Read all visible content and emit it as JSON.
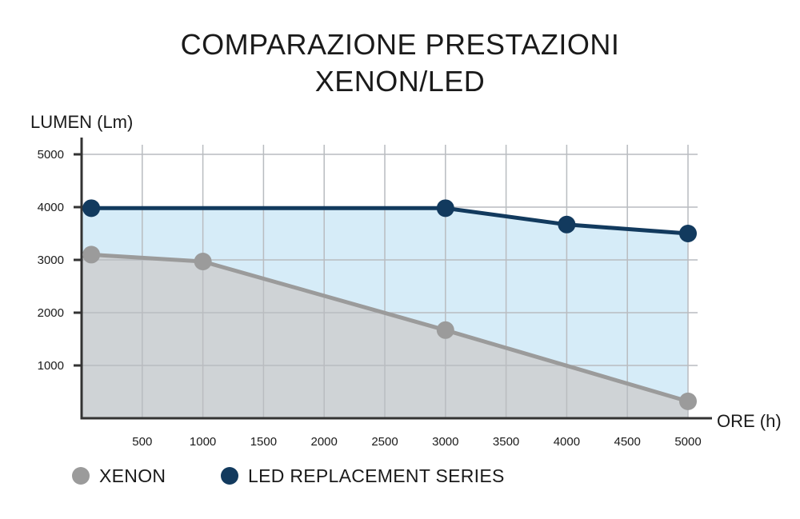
{
  "chart_data": {
    "type": "area",
    "title": [
      "COMPARAZIONE PRESTAZIONI",
      "XENON/LED"
    ],
    "xlabel": "ORE (h)",
    "ylabel": "LUMEN (Lm)",
    "xlim": [
      0,
      5000
    ],
    "ylim": [
      0,
      5000
    ],
    "x_ticks": [
      500,
      1000,
      1500,
      2000,
      2500,
      3000,
      3500,
      4000,
      4500,
      5000
    ],
    "y_ticks": [
      1000,
      2000,
      3000,
      4000,
      5000
    ],
    "grid": true,
    "legend_position": "bottom-left",
    "series": [
      {
        "name": "XENON",
        "color": "#9b9b9b",
        "fill": "#cfd3d6",
        "points": [
          [
            80,
            3100
          ],
          [
            1000,
            2970
          ],
          [
            3000,
            1670
          ],
          [
            5000,
            320
          ]
        ]
      },
      {
        "name": "LED REPLACEMENT SERIES",
        "color": "#123a5e",
        "fill": "#d6ecf8",
        "points": [
          [
            80,
            3980
          ],
          [
            3000,
            3980
          ],
          [
            4000,
            3670
          ],
          [
            5000,
            3500
          ]
        ]
      }
    ]
  }
}
